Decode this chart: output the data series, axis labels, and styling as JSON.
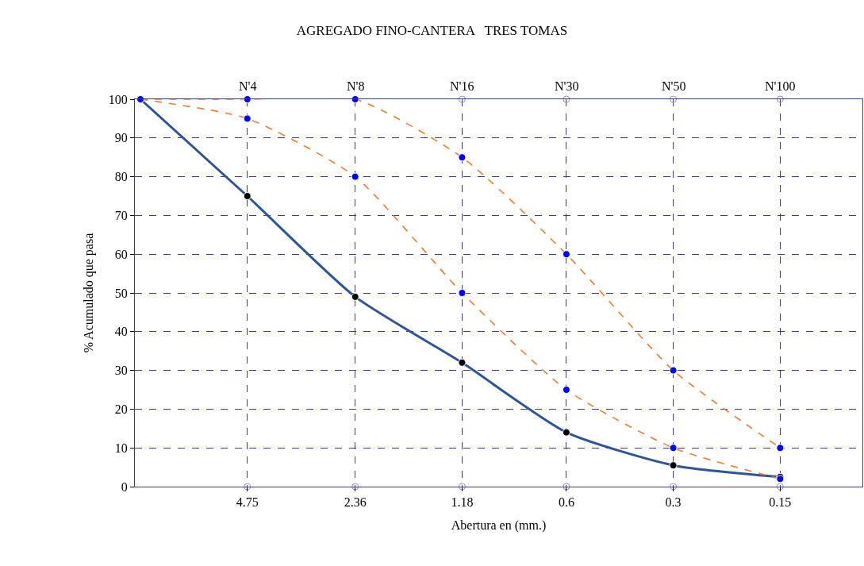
{
  "chart_data": {
    "type": "line",
    "title": "AGREGADO FINO-CANTERA   TRES TOMAS",
    "xlabel": "Abertura en (mm.)",
    "ylabel": "% Acumulado que pasa",
    "x": [
      9.5,
      4.75,
      2.36,
      1.18,
      0.6,
      0.3,
      0.15
    ],
    "log": "x",
    "xlim": [
      9.85,
      0.088
    ],
    "xticks": [
      4.75,
      2.36,
      1.18,
      0.6,
      0.3,
      0.15
    ],
    "annotations": [
      {
        "text": "N'4",
        "x": 4.75,
        "y": 100
      },
      {
        "text": "N'8",
        "x": 2.36,
        "y": 100
      },
      {
        "text": "N'16",
        "x": 1.18,
        "y": 100
      },
      {
        "text": "N'30",
        "x": 0.6,
        "y": 100
      },
      {
        "text": "N'50",
        "x": 0.3,
        "y": 100
      },
      {
        "text": "N'100",
        "x": 0.15,
        "y": 100
      }
    ],
    "ylim": [
      0,
      100
    ],
    "yticks": [
      0,
      10,
      20,
      30,
      40,
      50,
      60,
      70,
      80,
      90,
      100
    ],
    "grid": true,
    "marker": "circle",
    "series": [
      {
        "type": "scatter",
        "color": "#9090c0",
        "x": [
          1.18,
          0.6,
          0.3,
          0.15
        ],
        "values": [
          100,
          100,
          100,
          100
        ]
      },
      {
        "type": "scatter",
        "color": "#9090c0",
        "x": [
          4.75,
          2.36,
          1.18,
          0.6,
          0.3,
          0.15
        ],
        "values": [
          0,
          0,
          0,
          0,
          0,
          0
        ]
      },
      {
        "color": "#2f5597",
        "colors": [
          "#000000",
          "#000000",
          "#000000",
          "#000000",
          "#000000",
          "#000000",
          "#000000"
        ],
        "line_style": "solid",
        "values": [
          100,
          75,
          49,
          32,
          14,
          5.5,
          2.5
        ]
      },
      {
        "color": "#ed7d31",
        "colors": [
          "#0000ff",
          "#0000ff",
          "#0000ff",
          "#0000ff",
          "#0000ff",
          "#0000ff",
          "#0000ff"
        ],
        "line_style": "dashed",
        "values": [
          100,
          100,
          100,
          85,
          60,
          30,
          10
        ]
      },
      {
        "color": "#ed7d31",
        "colors": [
          "#0000ff",
          "#0000ff",
          "#0000ff",
          "#0000ff",
          "#0000ff",
          "#0000ff",
          "#0000ff"
        ],
        "line_style": "dashed",
        "values": [
          100,
          95,
          80,
          50,
          25,
          10,
          2
        ]
      }
    ]
  }
}
